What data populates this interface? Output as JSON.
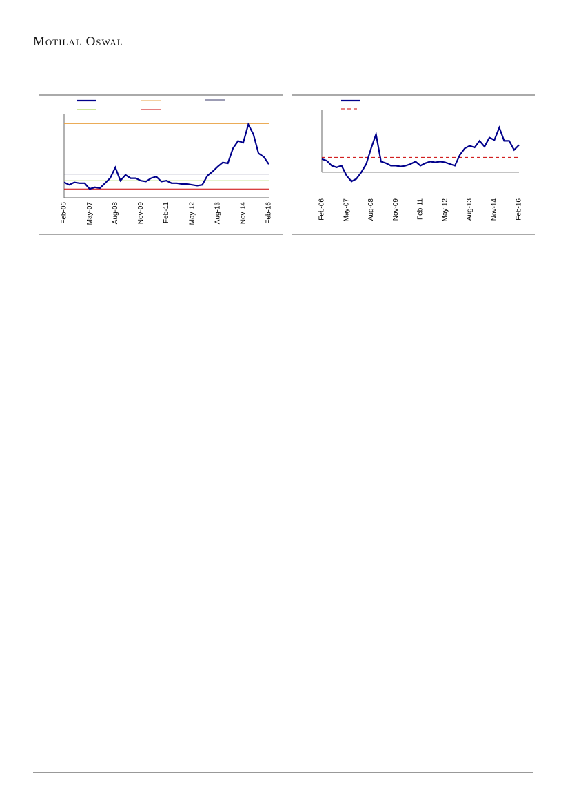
{
  "header": {
    "brand": "Motilal Oswal"
  },
  "chart_data": [
    {
      "type": "line",
      "ylim": [
        0,
        100
      ],
      "categories": [
        "Feb-06",
        null,
        null,
        null,
        null,
        "May-07",
        null,
        null,
        null,
        null,
        "Aug-08",
        null,
        null,
        null,
        null,
        "Nov-09",
        null,
        null,
        null,
        null,
        "Feb-11",
        null,
        null,
        null,
        null,
        "May-12",
        null,
        null,
        null,
        null,
        "Aug-13",
        null,
        null,
        null,
        null,
        "Nov-14",
        null,
        null,
        null,
        null,
        "Feb-16"
      ],
      "series": [
        {
          "color": "#00008b",
          "values": [
            17,
            14,
            17,
            16,
            16,
            9,
            11,
            10,
            16,
            22,
            35,
            19,
            26,
            22,
            22,
            19,
            18,
            22,
            24,
            18,
            19,
            16,
            16,
            15,
            15,
            14,
            13,
            14,
            25,
            30,
            36,
            41,
            40,
            58,
            67,
            65,
            87,
            75,
            52,
            48,
            39
          ]
        }
      ],
      "lines": [
        {
          "value": 88,
          "color": "#e8a040"
        },
        {
          "value": 27,
          "color": "#3a3a6a"
        },
        {
          "value": 19,
          "color": "#9acd32"
        },
        {
          "value": 9,
          "color": "#cc0000"
        }
      ]
    },
    {
      "type": "line",
      "ylim": [
        0,
        100
      ],
      "categories": [
        "Feb-06",
        null,
        null,
        null,
        null,
        "May-07",
        null,
        null,
        null,
        null,
        "Aug-08",
        null,
        null,
        null,
        null,
        "Nov-09",
        null,
        null,
        null,
        null,
        "Feb-11",
        null,
        null,
        null,
        null,
        "May-12",
        null,
        null,
        null,
        null,
        "Aug-13",
        null,
        null,
        null,
        null,
        "Nov-14",
        null,
        null,
        null,
        null,
        "Feb-16"
      ],
      "series": [
        {
          "color": "#00008b",
          "values": [
            41,
            39,
            33,
            31,
            33,
            21,
            14,
            17,
            25,
            35,
            54,
            71,
            38,
            36,
            33,
            33,
            32,
            33,
            35,
            38,
            33,
            36,
            38,
            37,
            38,
            37,
            35,
            33,
            46,
            54,
            57,
            55,
            63,
            56,
            67,
            64,
            79,
            63,
            63,
            52,
            58
          ]
        }
      ],
      "lines": [
        {
          "value": 43,
          "color": "#cc0000",
          "dashed": true
        },
        {
          "value": 25,
          "color": "#888888"
        }
      ]
    }
  ]
}
